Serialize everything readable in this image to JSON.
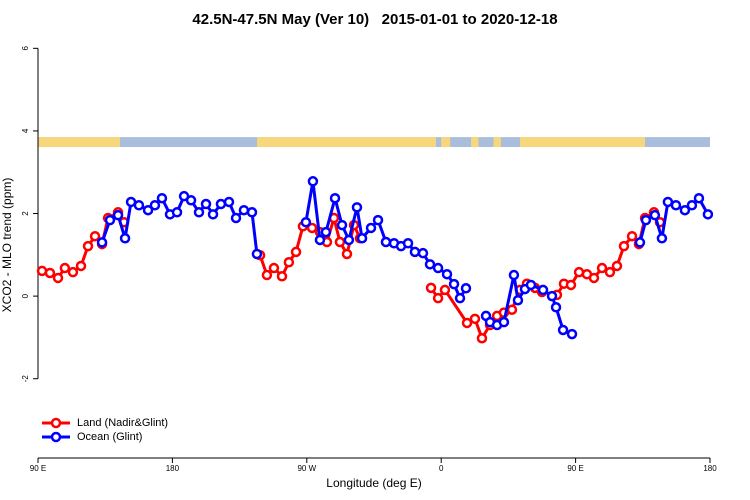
{
  "chart_data": {
    "type": "line",
    "title": "42.5N-47.5N May (Ver 10)   2015-01-01 to 2020-12-18",
    "xlabel": "Longitude (deg E)",
    "ylabel": "XCO2 - MLO trend (ppm)",
    "xlim": [
      90,
      540
    ],
    "xticks": [
      {
        "value": 90,
        "label": "90 E"
      },
      180,
      {
        "value": 270,
        "label": "90 W"
      },
      {
        "value": 360,
        "label": "0"
      },
      {
        "value": 450,
        "label": "90 E"
      },
      {
        "value": 540,
        "label": "180"
      }
    ],
    "ylim": [
      -3.92,
      6.25
    ],
    "yticks": [
      -2,
      0,
      2,
      4,
      6
    ],
    "legend": "bottom-left",
    "surface_strip": {
      "ylim": [
        3.61,
        3.85
      ],
      "ocean_color": "#a9bedc",
      "land_color": "#f8d67c",
      "land": [
        [
          90,
          144.9
        ],
        [
          236.7,
          356.5
        ],
        [
          360,
          366
        ],
        [
          380,
          385
        ],
        [
          395,
          400
        ],
        [
          412.8,
          496.5
        ]
      ]
    },
    "series": [
      {
        "name": "Land (Nadir&Glint)",
        "color": "#ff0000",
        "x": [
          92.7,
          98,
          103.4,
          108,
          113.4,
          118.8,
          123.5,
          128.2,
          132.9,
          136.9,
          143.6,
          147.6,
          null,
          238.7,
          243.3,
          248,
          253.4,
          258,
          262.8,
          267.4,
          273.5,
          278.8,
          283.5,
          288.2,
          292.2,
          296.9,
          301.6,
          305.6,
          null,
          353.2,
          357.9,
          362.5,
          377.3,
          382.6,
          387.3,
          392.7,
          397.4,
          402,
          407.4,
          412.7,
          417.4,
          422.8,
          427.5,
          437.5,
          442.2,
          446.9,
          452.3,
          457.6,
          462.3,
          467.7,
          473,
          477.7,
          482.4,
          487.8,
          492.4,
          496.5,
          502.5,
          506.5
        ],
        "values": [
          0.61,
          0.56,
          0.44,
          0.68,
          0.58,
          0.73,
          1.21,
          1.45,
          1.26,
          1.89,
          2.03,
          1.79,
          null,
          0.99,
          0.51,
          0.68,
          0.48,
          0.82,
          1.07,
          1.69,
          1.65,
          1.55,
          1.31,
          1.89,
          1.31,
          1.02,
          1.72,
          1.4,
          null,
          0.2,
          -0.05,
          0.15,
          -0.65,
          -0.55,
          -1.02,
          -0.7,
          -0.48,
          -0.4,
          -0.33,
          0.15,
          0.3,
          0.2,
          0.1,
          0.03,
          0.3,
          0.27,
          0.58,
          0.53,
          0.44,
          0.68,
          0.58,
          0.73,
          1.21,
          1.45,
          1.26,
          1.89,
          2.03,
          1.79
        ]
      },
      {
        "name": "Ocean (Glint)",
        "color": "#0000ff",
        "x": [
          132.9,
          138.2,
          143.6,
          148.3,
          152.3,
          157.6,
          163.7,
          168.3,
          173,
          178.4,
          183.1,
          187.8,
          192.5,
          197.8,
          202.5,
          207.2,
          212.5,
          217.9,
          222.6,
          227.9,
          233.3,
          236.6,
          null,
          269.4,
          274.1,
          278.8,
          282.8,
          288.9,
          293.6,
          298.2,
          303.6,
          307,
          313,
          317.7,
          323,
          328.4,
          333.1,
          337.8,
          342.4,
          347.8,
          352.5,
          357.9,
          363.9,
          368.6,
          372.6,
          376.6,
          null,
          390,
          392.7,
          397.4,
          402,
          408.7,
          411.4,
          416.1,
          420.1,
          428.2,
          434.2,
          436.9,
          441.6,
          447.6,
          null,
          493.1,
          497.1,
          503.1,
          507.8,
          511.8,
          517.2,
          523.2,
          527.9,
          532.6,
          538.6
        ],
        "values": [
          1.3,
          1.84,
          1.96,
          1.4,
          2.28,
          2.2,
          2.08,
          2.2,
          2.37,
          1.98,
          2.03,
          2.42,
          2.32,
          2.03,
          2.23,
          1.98,
          2.23,
          2.28,
          1.89,
          2.08,
          2.03,
          1.02,
          null,
          1.79,
          2.78,
          1.36,
          1.55,
          2.37,
          1.72,
          1.36,
          2.15,
          1.4,
          1.65,
          1.84,
          1.31,
          1.28,
          1.21,
          1.28,
          1.07,
          1.04,
          0.77,
          0.68,
          0.53,
          0.29,
          -0.05,
          0.19,
          null,
          -0.48,
          -0.63,
          -0.7,
          -0.63,
          0.51,
          -0.1,
          0.17,
          0.27,
          0.15,
          0,
          -0.27,
          -0.82,
          -0.92,
          null,
          1.3,
          1.84,
          1.96,
          1.4,
          2.28,
          2.2,
          2.08,
          2.2,
          2.37,
          1.98
        ]
      }
    ]
  }
}
